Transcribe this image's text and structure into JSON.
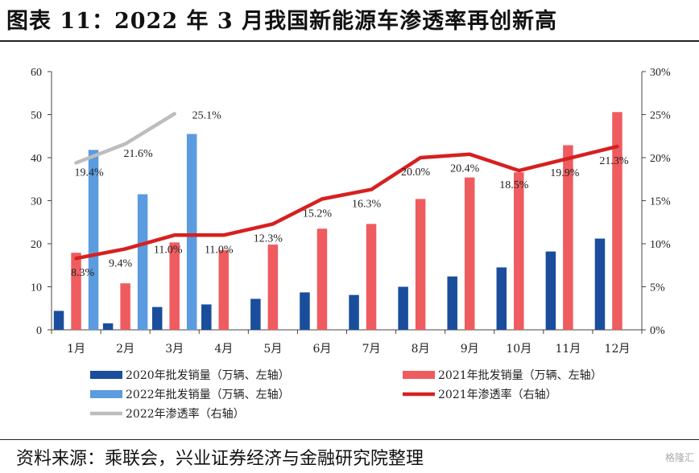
{
  "title": "图表 11：2022 年 3 月我国新能源车渗透率再创新高",
  "source": "资料来源：乘联会，兴业证券经济与金融研究院整理",
  "watermark": "格隆汇",
  "chart_data": {
    "type": "bar",
    "categories": [
      "1月",
      "2月",
      "3月",
      "4月",
      "5月",
      "6月",
      "7月",
      "8月",
      "9月",
      "10月",
      "11月",
      "12月"
    ],
    "y_left": {
      "min": 0,
      "max": 60,
      "ticks": [
        "0",
        "10",
        "20",
        "30",
        "40",
        "50",
        "60"
      ]
    },
    "y_right": {
      "min": 0,
      "max": 0.3,
      "ticks": [
        "0%",
        "5%",
        "10%",
        "15%",
        "20%",
        "25%",
        "30%"
      ]
    },
    "series": [
      {
        "name": "2020年批发销量（万辆、左轴）",
        "kind": "bar",
        "axis": "left",
        "color": "#1a4d9c",
        "values": [
          4.4,
          1.5,
          5.3,
          5.9,
          7.2,
          8.7,
          8.1,
          10.0,
          12.4,
          14.5,
          18.2,
          21.2
        ]
      },
      {
        "name": "2021年批发销量（万辆、左轴）",
        "kind": "bar",
        "axis": "left",
        "color": "#ee5c60",
        "values": [
          17.9,
          10.8,
          20.3,
          18.5,
          19.8,
          23.5,
          24.6,
          30.4,
          35.4,
          36.6,
          42.9,
          50.6
        ]
      },
      {
        "name": "2022年批发销量（万辆、左轴）",
        "kind": "bar",
        "axis": "left",
        "color": "#5b9be0",
        "values": [
          41.8,
          31.5,
          45.5,
          null,
          null,
          null,
          null,
          null,
          null,
          null,
          null,
          null
        ]
      },
      {
        "name": "2021年渗透率（右轴）",
        "kind": "line",
        "axis": "right",
        "color": "#d62020",
        "values": [
          0.083,
          0.094,
          0.11,
          0.11,
          0.123,
          0.152,
          0.163,
          0.2,
          0.204,
          0.185,
          0.199,
          0.213
        ],
        "labels": [
          "8.3%",
          "9.4%",
          "11.0%",
          "11.0%",
          "12.3%",
          "15.2%",
          "16.3%",
          "20.0%",
          "20.4%",
          "18.5%",
          "19.9%",
          "21.3%"
        ]
      },
      {
        "name": "2022年渗透率（右轴）",
        "kind": "line",
        "axis": "right",
        "color": "#bdbdbd",
        "values": [
          0.194,
          0.216,
          0.251,
          null,
          null,
          null,
          null,
          null,
          null,
          null,
          null,
          null
        ],
        "labels": [
          "19.4%",
          "21.6%",
          "25.1%"
        ]
      }
    ],
    "legend_placement": "bottom"
  }
}
